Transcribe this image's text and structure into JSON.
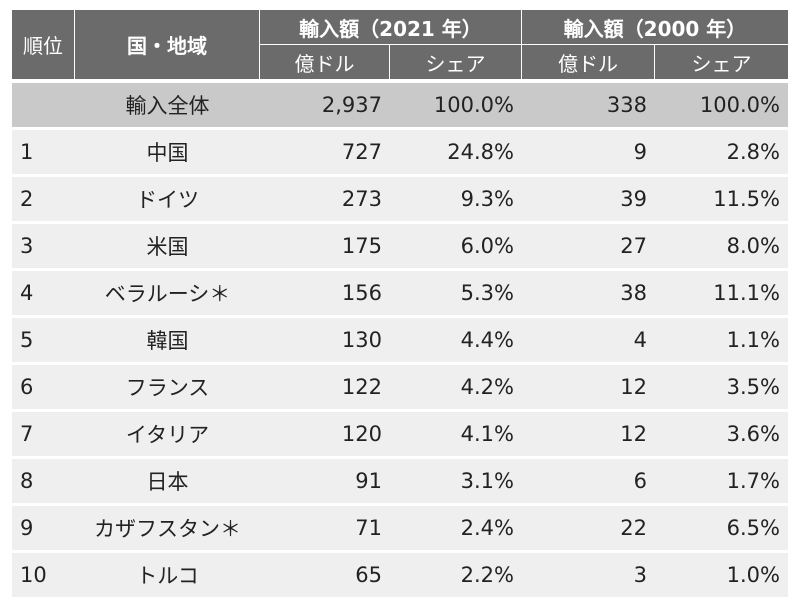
{
  "header": {
    "rank": "順位",
    "country": "国・地域",
    "group_2021": "輸入額（2021 年）",
    "group_2000": "輸入額（2000 年）",
    "unit": "億ドル",
    "share": "シェア"
  },
  "total": {
    "label": "輸入全体",
    "v2021": "2,937",
    "s2021": "100.0%",
    "v2000": "338",
    "s2000": "100.0%"
  },
  "rows": [
    {
      "rank": "1",
      "country": "中国",
      "v2021": "727",
      "s2021": "24.8%",
      "v2000": "9",
      "s2000": "2.8%"
    },
    {
      "rank": "2",
      "country": "ドイツ",
      "v2021": "273",
      "s2021": "9.3%",
      "v2000": "39",
      "s2000": "11.5%"
    },
    {
      "rank": "3",
      "country": "米国",
      "v2021": "175",
      "s2021": "6.0%",
      "v2000": "27",
      "s2000": "8.0%"
    },
    {
      "rank": "4",
      "country": "ベラルーシ＊",
      "v2021": "156",
      "s2021": "5.3%",
      "v2000": "38",
      "s2000": "11.1%"
    },
    {
      "rank": "5",
      "country": "韓国",
      "v2021": "130",
      "s2021": "4.4%",
      "v2000": "4",
      "s2000": "1.1%"
    },
    {
      "rank": "6",
      "country": "フランス",
      "v2021": "122",
      "s2021": "4.2%",
      "v2000": "12",
      "s2000": "3.5%"
    },
    {
      "rank": "7",
      "country": "イタリア",
      "v2021": "120",
      "s2021": "4.1%",
      "v2000": "12",
      "s2000": "3.6%"
    },
    {
      "rank": "8",
      "country": "日本",
      "v2021": "91",
      "s2021": "3.1%",
      "v2000": "6",
      "s2000": "1.7%"
    },
    {
      "rank": "9",
      "country": "カザフスタン＊",
      "v2021": "71",
      "s2021": "2.4%",
      "v2000": "22",
      "s2000": "6.5%"
    },
    {
      "rank": "10",
      "country": "トルコ",
      "v2021": "65",
      "s2021": "2.2%",
      "v2000": "3",
      "s2000": "1.0%"
    }
  ]
}
